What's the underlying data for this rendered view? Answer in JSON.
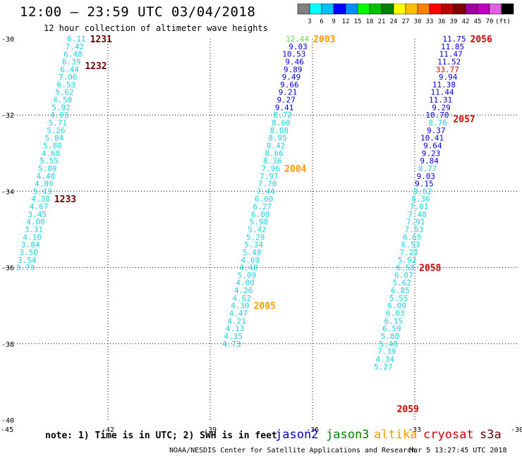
{
  "title": "12:00 — 23:59 UTC 03/04/2018",
  "subtitle": "12 hour collection of altimeter wave heights",
  "note": "note: 1) Time is in UTC; 2) SWH is in feet",
  "credit": "NOAA/NESDIS Center for Satellite Applications and Research",
  "timestamp": "Mar  5 13:27:45 UTC 2018",
  "colors": {
    "scale": [
      "#808080",
      "#00ffff",
      "#00c0ff",
      "#0000ff",
      "#0090ff",
      "#00ff00",
      "#00c000",
      "#008000",
      "#ffff00",
      "#ffc000",
      "#ff8000",
      "#ff0000",
      "#c00000",
      "#800000",
      "#a000a0",
      "#c000c0",
      "#e060e0",
      "#000000"
    ],
    "cyan": "#22ccdd",
    "blue": "#0000cc",
    "red": "#cc0000",
    "orange": "#ff9900",
    "darkred": "#660000",
    "green": "#66dd44"
  },
  "scale_labels": [
    "3",
    "6",
    "9",
    "12",
    "15",
    "18",
    "21",
    "24",
    "27",
    "30",
    "33",
    "36",
    "39",
    "42",
    "45",
    "70",
    "(ft)"
  ],
  "legend": [
    {
      "label": "jason2",
      "color": "#0000cc"
    },
    {
      "label": "jason3",
      "color": "#008000"
    },
    {
      "label": "altika",
      "color": "#ff9900"
    },
    {
      "label": "cryosat",
      "color": "#cc0000"
    },
    {
      "label": "s3a",
      "color": "#660000"
    }
  ],
  "chart_data": {
    "type": "scatter",
    "xlim": [
      -45,
      -30
    ],
    "ylim": [
      -40,
      -30
    ],
    "xticks": [
      -45,
      -42,
      -39,
      -36,
      -33,
      -30
    ],
    "yticks": [
      -30,
      -32,
      -34,
      -36,
      -38,
      -40
    ],
    "xtick_labels": [
      "-45",
      "-42",
      "-39",
      "-36",
      "-33",
      "-30"
    ],
    "ytick_labels": [
      "-30",
      "-32",
      "-34",
      "-36",
      "-38",
      "-40"
    ],
    "grid": true,
    "series": [
      {
        "name": "s3a",
        "time_labels": [
          {
            "label": "1231",
            "y": -30.0
          },
          {
            "label": "1232",
            "y": -30.7
          },
          {
            "label": "1233",
            "y": -34.2
          }
        ],
        "points": [
          {
            "x": -42.65,
            "y": -30.0,
            "v": "6.11",
            "c": "#22ccdd"
          },
          {
            "x": -42.7,
            "y": -30.2,
            "v": "7.42",
            "c": "#22ccdd"
          },
          {
            "x": -42.75,
            "y": -30.4,
            "v": "6.48",
            "c": "#22ccdd"
          },
          {
            "x": -42.8,
            "y": -30.6,
            "v": "6.39",
            "c": "#22ccdd"
          },
          {
            "x": -42.85,
            "y": -30.8,
            "v": "6.44",
            "c": "#22ccdd"
          },
          {
            "x": -42.9,
            "y": -31.0,
            "v": "7.06",
            "c": "#22ccdd"
          },
          {
            "x": -42.95,
            "y": -31.2,
            "v": "6.53",
            "c": "#22ccdd"
          },
          {
            "x": -43.0,
            "y": -31.4,
            "v": "5.62",
            "c": "#22ccdd"
          },
          {
            "x": -43.05,
            "y": -31.6,
            "v": "6.50",
            "c": "#22ccdd"
          },
          {
            "x": -43.1,
            "y": -31.8,
            "v": "5.92",
            "c": "#22ccdd"
          },
          {
            "x": -43.15,
            "y": -32.0,
            "v": "4.93",
            "c": "#22ccdd"
          },
          {
            "x": -43.2,
            "y": -32.2,
            "v": "5.71",
            "c": "#22ccdd"
          },
          {
            "x": -43.25,
            "y": -32.4,
            "v": "5.26",
            "c": "#22ccdd"
          },
          {
            "x": -43.3,
            "y": -32.6,
            "v": "5.84",
            "c": "#22ccdd"
          },
          {
            "x": -43.35,
            "y": -32.8,
            "v": "5.80",
            "c": "#22ccdd"
          },
          {
            "x": -43.4,
            "y": -33.0,
            "v": "4.68",
            "c": "#22ccdd"
          },
          {
            "x": -43.45,
            "y": -33.2,
            "v": "5.55",
            "c": "#22ccdd"
          },
          {
            "x": -43.5,
            "y": -33.4,
            "v": "5.09",
            "c": "#22ccdd"
          },
          {
            "x": -43.55,
            "y": -33.6,
            "v": "4.48",
            "c": "#22ccdd"
          },
          {
            "x": -43.6,
            "y": -33.8,
            "v": "4.89",
            "c": "#22ccdd"
          },
          {
            "x": -43.65,
            "y": -34.0,
            "v": "5.43",
            "c": "#22ccdd"
          },
          {
            "x": -43.7,
            "y": -34.2,
            "v": "4.38",
            "c": "#22ccdd"
          },
          {
            "x": -43.75,
            "y": -34.4,
            "v": "4.67",
            "c": "#22ccdd"
          },
          {
            "x": -43.8,
            "y": -34.6,
            "v": "3.45",
            "c": "#22ccdd"
          },
          {
            "x": -43.85,
            "y": -34.8,
            "v": "4.00",
            "c": "#22ccdd"
          },
          {
            "x": -43.9,
            "y": -35.0,
            "v": "3.31",
            "c": "#22ccdd"
          },
          {
            "x": -43.95,
            "y": -35.2,
            "v": "4.10",
            "c": "#22ccdd"
          },
          {
            "x": -44.0,
            "y": -35.4,
            "v": "3.84",
            "c": "#22ccdd"
          },
          {
            "x": -44.05,
            "y": -35.6,
            "v": "3.50",
            "c": "#22ccdd"
          },
          {
            "x": -44.1,
            "y": -35.8,
            "v": "3.54",
            "c": "#22ccdd"
          },
          {
            "x": -44.15,
            "y": -36.0,
            "v": "3.73",
            "c": "#22ccdd"
          }
        ]
      },
      {
        "name": "altika",
        "time_labels": [
          {
            "label": "2003",
            "y": -30.0
          },
          {
            "label": "2004",
            "y": -33.4
          },
          {
            "label": "2005",
            "y": -37.0
          }
        ],
        "points": [
          {
            "x": -36.1,
            "y": -30.0,
            "v": "12.44",
            "c": "#66dd44"
          },
          {
            "x": -36.15,
            "y": -30.2,
            "v": "9.03",
            "c": "#0000cc"
          },
          {
            "x": -36.2,
            "y": -30.4,
            "v": "10.53",
            "c": "#0000cc"
          },
          {
            "x": -36.25,
            "y": -30.6,
            "v": "9.46",
            "c": "#0000cc"
          },
          {
            "x": -36.3,
            "y": -30.8,
            "v": "9.89",
            "c": "#0000cc"
          },
          {
            "x": -36.35,
            "y": -31.0,
            "v": "9.49",
            "c": "#0000cc"
          },
          {
            "x": -36.4,
            "y": -31.2,
            "v": "9.66",
            "c": "#0000cc"
          },
          {
            "x": -36.45,
            "y": -31.4,
            "v": "9.21",
            "c": "#0000cc"
          },
          {
            "x": -36.5,
            "y": -31.6,
            "v": "9.27",
            "c": "#0000cc"
          },
          {
            "x": -36.55,
            "y": -31.8,
            "v": "9.41",
            "c": "#0000cc"
          },
          {
            "x": -36.6,
            "y": -32.0,
            "v": "8.72",
            "c": "#22ccdd"
          },
          {
            "x": -36.65,
            "y": -32.2,
            "v": "8.60",
            "c": "#22ccdd"
          },
          {
            "x": -36.7,
            "y": -32.4,
            "v": "8.08",
            "c": "#22ccdd"
          },
          {
            "x": -36.75,
            "y": -32.6,
            "v": "8.95",
            "c": "#22ccdd"
          },
          {
            "x": -36.8,
            "y": -32.8,
            "v": "8.42",
            "c": "#22ccdd"
          },
          {
            "x": -36.85,
            "y": -33.0,
            "v": "8.66",
            "c": "#22ccdd"
          },
          {
            "x": -36.9,
            "y": -33.2,
            "v": "8.36",
            "c": "#22ccdd"
          },
          {
            "x": -36.95,
            "y": -33.4,
            "v": "7.96",
            "c": "#22ccdd"
          },
          {
            "x": -37.0,
            "y": -33.6,
            "v": "7.97",
            "c": "#22ccdd"
          },
          {
            "x": -37.05,
            "y": -33.8,
            "v": "7.70",
            "c": "#22ccdd"
          },
          {
            "x": -37.1,
            "y": -34.0,
            "v": "7.44",
            "c": "#22ccdd"
          },
          {
            "x": -37.15,
            "y": -34.2,
            "v": "6.60",
            "c": "#22ccdd"
          },
          {
            "x": -37.2,
            "y": -34.4,
            "v": "6.27",
            "c": "#22ccdd"
          },
          {
            "x": -37.25,
            "y": -34.6,
            "v": "6.08",
            "c": "#22ccdd"
          },
          {
            "x": -37.3,
            "y": -34.8,
            "v": "5.98",
            "c": "#22ccdd"
          },
          {
            "x": -37.35,
            "y": -35.0,
            "v": "5.42",
            "c": "#22ccdd"
          },
          {
            "x": -37.4,
            "y": -35.2,
            "v": "5.29",
            "c": "#22ccdd"
          },
          {
            "x": -37.45,
            "y": -35.4,
            "v": "5.34",
            "c": "#22ccdd"
          },
          {
            "x": -37.5,
            "y": -35.6,
            "v": "5.48",
            "c": "#22ccdd"
          },
          {
            "x": -37.55,
            "y": -35.8,
            "v": "4.69",
            "c": "#22ccdd"
          },
          {
            "x": -37.6,
            "y": -36.0,
            "v": "4.48",
            "c": "#22ccdd"
          },
          {
            "x": -37.65,
            "y": -36.2,
            "v": "5.09",
            "c": "#22ccdd"
          },
          {
            "x": -37.7,
            "y": -36.4,
            "v": "4.00",
            "c": "#22ccdd"
          },
          {
            "x": -37.75,
            "y": -36.6,
            "v": "4.26",
            "c": "#22ccdd"
          },
          {
            "x": -37.8,
            "y": -36.8,
            "v": "4.62",
            "c": "#22ccdd"
          },
          {
            "x": -37.85,
            "y": -37.0,
            "v": "4.30",
            "c": "#22ccdd"
          },
          {
            "x": -37.9,
            "y": -37.2,
            "v": "4.47",
            "c": "#22ccdd"
          },
          {
            "x": -37.95,
            "y": -37.4,
            "v": "4.21",
            "c": "#22ccdd"
          },
          {
            "x": -38.0,
            "y": -37.6,
            "v": "4.13",
            "c": "#22ccdd"
          },
          {
            "x": -38.05,
            "y": -37.8,
            "v": "4.35",
            "c": "#22ccdd"
          },
          {
            "x": -38.1,
            "y": -38.0,
            "v": "4.73",
            "c": "#22ccdd"
          }
        ]
      },
      {
        "name": "cryosat",
        "time_labels": [
          {
            "label": "2056",
            "y": -30.0
          },
          {
            "label": "2057",
            "y": -32.1
          },
          {
            "label": "2058",
            "y": -36.0
          },
          {
            "label": "2059",
            "y": -39.7
          }
        ],
        "points": [
          {
            "x": -31.5,
            "y": -30.0,
            "v": "11.75",
            "c": "#0000cc"
          },
          {
            "x": -31.55,
            "y": -30.2,
            "v": "11.85",
            "c": "#0000cc"
          },
          {
            "x": -31.6,
            "y": -30.4,
            "v": "11.47",
            "c": "#0000cc"
          },
          {
            "x": -31.65,
            "y": -30.6,
            "v": "11.52",
            "c": "#0000cc"
          },
          {
            "x": -31.7,
            "y": -30.8,
            "v": "33.77",
            "c": "#cc0000"
          },
          {
            "x": -31.75,
            "y": -31.0,
            "v": "9.94",
            "c": "#0000cc"
          },
          {
            "x": -31.8,
            "y": -31.2,
            "v": "11.38",
            "c": "#0000cc"
          },
          {
            "x": -31.85,
            "y": -31.4,
            "v": "11.44",
            "c": "#0000cc"
          },
          {
            "x": -31.9,
            "y": -31.6,
            "v": "11.31",
            "c": "#0000cc"
          },
          {
            "x": -31.95,
            "y": -31.8,
            "v": "9.29",
            "c": "#0000cc"
          },
          {
            "x": -32.0,
            "y": -32.0,
            "v": "10.70",
            "c": "#0000cc"
          },
          {
            "x": -32.05,
            "y": -32.2,
            "v": "8.76",
            "c": "#22ccdd"
          },
          {
            "x": -32.1,
            "y": -32.4,
            "v": "9.37",
            "c": "#0000cc"
          },
          {
            "x": -32.15,
            "y": -32.6,
            "v": "10.41",
            "c": "#0000cc"
          },
          {
            "x": -32.2,
            "y": -32.8,
            "v": "9.64",
            "c": "#0000cc"
          },
          {
            "x": -32.25,
            "y": -33.0,
            "v": "9.23",
            "c": "#0000cc"
          },
          {
            "x": -32.3,
            "y": -33.2,
            "v": "9.84",
            "c": "#0000cc"
          },
          {
            "x": -32.35,
            "y": -33.4,
            "v": "8.77",
            "c": "#22ccdd"
          },
          {
            "x": -32.4,
            "y": -33.6,
            "v": "9.03",
            "c": "#0000cc"
          },
          {
            "x": -32.45,
            "y": -33.8,
            "v": "9.15",
            "c": "#0000cc"
          },
          {
            "x": -32.5,
            "y": -34.0,
            "v": "8.62",
            "c": "#22ccdd"
          },
          {
            "x": -32.55,
            "y": -34.2,
            "v": "8.36",
            "c": "#22ccdd"
          },
          {
            "x": -32.6,
            "y": -34.4,
            "v": "7.01",
            "c": "#22ccdd"
          },
          {
            "x": -32.65,
            "y": -34.6,
            "v": "7.48",
            "c": "#22ccdd"
          },
          {
            "x": -32.7,
            "y": -34.8,
            "v": "7.91",
            "c": "#22ccdd"
          },
          {
            "x": -32.75,
            "y": -35.0,
            "v": "7.53",
            "c": "#22ccdd"
          },
          {
            "x": -32.8,
            "y": -35.2,
            "v": "6.65",
            "c": "#22ccdd"
          },
          {
            "x": -32.85,
            "y": -35.4,
            "v": "6.53",
            "c": "#22ccdd"
          },
          {
            "x": -32.9,
            "y": -35.6,
            "v": "7.23",
            "c": "#22ccdd"
          },
          {
            "x": -32.95,
            "y": -35.8,
            "v": "5.92",
            "c": "#22ccdd"
          },
          {
            "x": -33.0,
            "y": -36.0,
            "v": "6.58",
            "c": "#22ccdd"
          },
          {
            "x": -33.05,
            "y": -36.2,
            "v": "6.07",
            "c": "#22ccdd"
          },
          {
            "x": -33.1,
            "y": -36.4,
            "v": "5.62",
            "c": "#22ccdd"
          },
          {
            "x": -33.15,
            "y": -36.6,
            "v": "6.85",
            "c": "#22ccdd"
          },
          {
            "x": -33.2,
            "y": -36.8,
            "v": "5.55",
            "c": "#22ccdd"
          },
          {
            "x": -33.25,
            "y": -37.0,
            "v": "6.09",
            "c": "#22ccdd"
          },
          {
            "x": -33.3,
            "y": -37.2,
            "v": "6.03",
            "c": "#22ccdd"
          },
          {
            "x": -33.35,
            "y": -37.4,
            "v": "6.15",
            "c": "#22ccdd"
          },
          {
            "x": -33.4,
            "y": -37.6,
            "v": "6.59",
            "c": "#22ccdd"
          },
          {
            "x": -33.45,
            "y": -37.8,
            "v": "5.88",
            "c": "#22ccdd"
          },
          {
            "x": -33.5,
            "y": -38.0,
            "v": "5.48",
            "c": "#22ccdd"
          },
          {
            "x": -33.55,
            "y": -38.2,
            "v": "7.39",
            "c": "#22ccdd"
          },
          {
            "x": -33.6,
            "y": -38.4,
            "v": "4.34",
            "c": "#22ccdd"
          },
          {
            "x": -33.65,
            "y": -38.6,
            "v": "5.27",
            "c": "#22ccdd"
          }
        ]
      }
    ]
  }
}
